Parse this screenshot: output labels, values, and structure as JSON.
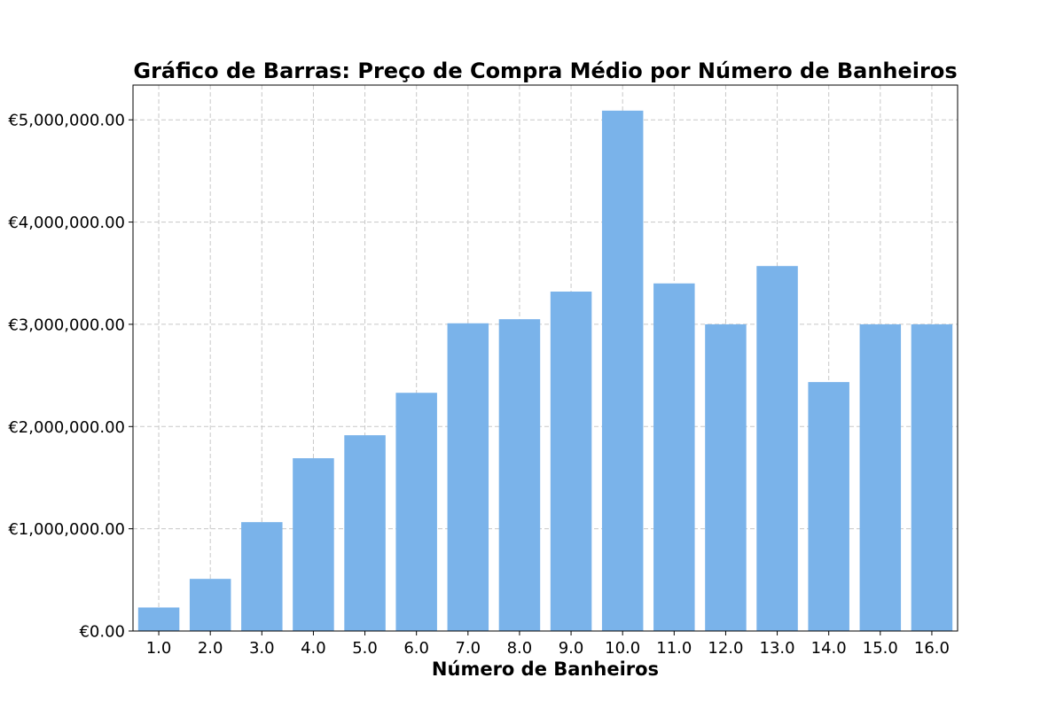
{
  "chart_data": {
    "type": "bar",
    "title": "Gráfico de Barras: Preço de Compra Médio por Número de Banheiros",
    "xlabel": "Número de Banheiros",
    "ylabel": "",
    "categories": [
      "1.0",
      "2.0",
      "3.0",
      "4.0",
      "5.0",
      "6.0",
      "7.0",
      "8.0",
      "9.0",
      "10.0",
      "11.0",
      "12.0",
      "13.0",
      "14.0",
      "15.0",
      "16.0"
    ],
    "values": [
      230000,
      510000,
      1065000,
      1690000,
      1915000,
      2330000,
      3010000,
      3050000,
      3320000,
      5090000,
      3400000,
      3000000,
      3570000,
      2435000,
      3000000,
      3000000
    ],
    "ylim": [
      0,
      5340000
    ],
    "yticks": [
      0,
      1000000,
      2000000,
      3000000,
      4000000,
      5000000
    ],
    "ytick_labels": [
      "€0.00",
      "€1,000,000.00",
      "€2,000,000.00",
      "€3,000,000.00",
      "€4,000,000.00",
      "€5,000,000.00"
    ],
    "grid": true,
    "bar_color": "#7ab3ea",
    "grid_color": "#c8c8c8"
  }
}
